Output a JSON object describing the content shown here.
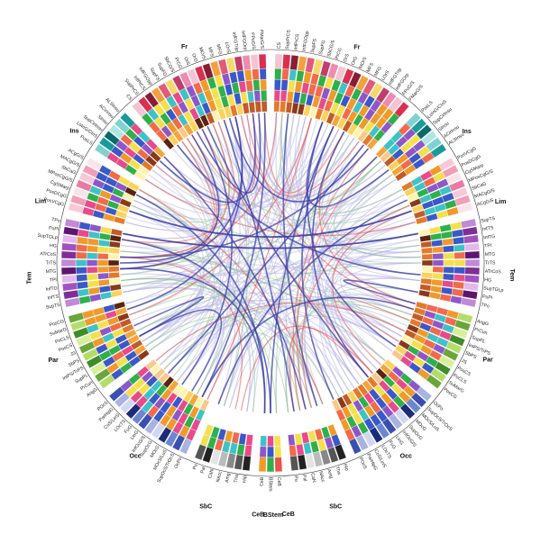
{
  "lobes": {
    "left": [
      "Fr",
      "Ins",
      "Lim",
      "Tem",
      "Par",
      "Occ"
    ],
    "right": [
      "Fr",
      "Ins",
      "Lim",
      "Tem",
      "Par",
      "Occ"
    ],
    "bottom": [
      "SbC",
      "CeB",
      "BStem",
      "CeB",
      "SbC"
    ]
  },
  "regions": {
    "left_frontal": [
      "FMarG/S",
      "FPoG/S",
      "InfFGOrp",
      "InfFGTrip",
      "LOrS",
      "MFG",
      "MFS",
      "MOrS",
      "OrG",
      "OrS",
      "PrCG",
      "SbCG/S",
      "SupFG",
      "SupFS",
      "InfFGOpp",
      "InfPrCS",
      "SupPrCS",
      "CS"
    ],
    "left_insula": [
      "ALSInsu",
      "ACirInsu",
      "SInsu",
      "SupCirInsu",
      "LoInG/CInS",
      "PosLS"
    ],
    "left_limbic": [
      "ACgG/S",
      "MACgG/S",
      "SbCaG",
      "MPosCgG/S",
      "CgSMarp",
      "PosDCgG",
      "PosVCgG"
    ],
    "left_temporal": [
      "TPo",
      "PoPl",
      "SupTGLp",
      "HG",
      "ATrCoS",
      "TrTS",
      "MTG",
      "TPl",
      "InfTG",
      "InfTS",
      "SupTS"
    ],
    "left_parietal": [
      "PosCG",
      "SuMarG",
      "PoCLS",
      "PosCS",
      "JS",
      "SbPS",
      "IntPS/TrPS",
      "SupPL",
      "PrCun",
      "AngG"
    ],
    "left_occipital": [
      "POcS",
      "ParHipG",
      "CoS/LinS",
      "LOcTS",
      "FuG",
      "LinG",
      "InfOcG/S",
      "SupOcG",
      "MOcG",
      "MOcS/LuS",
      "SupOcS/TrOcS",
      "OcPo"
    ],
    "left_subcortical": [
      "Pu",
      "Pal",
      "CaN",
      "NAcc",
      "Amg",
      "Tha",
      "Hip"
    ],
    "brainstem": [
      "CeB",
      "BStem",
      "CeB"
    ],
    "right_subcortical": [
      "Hip",
      "Tha",
      "Amg",
      "NAcc",
      "CaN",
      "Pal",
      "Pu"
    ],
    "right_occipital": [
      "OcPo",
      "SupOcS/TrOcS",
      "MOcS/LuS",
      "MOcG",
      "SupOcG",
      "InfOcG/S",
      "LinG",
      "FuG",
      "LOcTS",
      "CoS/LinS",
      "ParHipG",
      "POcS"
    ],
    "right_parietal": [
      "AngG",
      "PrCun",
      "SupPL",
      "IntPS/TrPS",
      "SbPS",
      "JS",
      "PosCS",
      "PoCLS",
      "SuMarG",
      "PosCG"
    ],
    "right_temporal": [
      "SupTS",
      "InfTS",
      "InfTG",
      "TPl",
      "MTG",
      "TrTS",
      "ATrCoS",
      "HG",
      "SupTGLp",
      "PoPl",
      "TPo"
    ],
    "right_limbic": [
      "PosVCgG",
      "PosDCgG",
      "CgSMarp",
      "MPosCgG/S",
      "SbCaG",
      "MACgG/S",
      "ACgG/S"
    ],
    "right_insula": [
      "PosLS",
      "LoInG/CInS",
      "SupCirInsu",
      "SInsu",
      "ACirInsu",
      "ALSInsu"
    ],
    "right_frontal": [
      "CS",
      "SupPrCS",
      "InfPrCS",
      "InfFGOpp",
      "SupFS",
      "SupFG",
      "SbCG/S",
      "PrCG",
      "OrS",
      "OrG",
      "MOrS",
      "MFS",
      "MFG",
      "LOrS",
      "InfFGTrip",
      "InfFGOrp",
      "FPoG/S",
      "FMarG/S"
    ]
  },
  "colors": {
    "link_blue": "#3b3fa8",
    "link_lavender": "#b9b8e6",
    "link_red": "#e8534d",
    "link_green": "#8dc88c",
    "frontal": [
      "#f3c4d2",
      "#d9304f",
      "#8a1c35",
      "#f4a13c",
      "#e25a78",
      "#f7d96b",
      "#c13d6a",
      "#ef8ab0"
    ],
    "insula": [
      "#7fd2cf",
      "#1a9a99",
      "#0a6a6c",
      "#b0e5e3"
    ],
    "limbic": [
      "#f9c8d6",
      "#f39db9",
      "#fbe3ea",
      "#e87ba1"
    ],
    "temporal": [
      "#c18ad6",
      "#7e2e94",
      "#a252be",
      "#e2b9ec",
      "#5c1670"
    ],
    "parietal": [
      "#b4dc6b",
      "#6aa63b",
      "#d8ef9a",
      "#3f8d28"
    ],
    "occipital": [
      "#a9b3e2",
      "#3a4fb0",
      "#6c86d2",
      "#1c2a7a",
      "#d1d7f3"
    ],
    "subcortical": [
      "#222222",
      "#555555",
      "#888888",
      "#bbbbbb",
      "#e3e3e3"
    ],
    "ring_palette": [
      "#3a58c8",
      "#2fb04a",
      "#f4e04d",
      "#f09a2b",
      "#e84a8a",
      "#8e57c8",
      "#3ec2c6",
      "#f16a4c"
    ],
    "heat_palette": [
      "#fff3b0",
      "#fbd25a",
      "#f4a53a",
      "#e47a2c",
      "#c25b26",
      "#8a3a1a",
      "#5a2410",
      "#f7c98a"
    ]
  }
}
